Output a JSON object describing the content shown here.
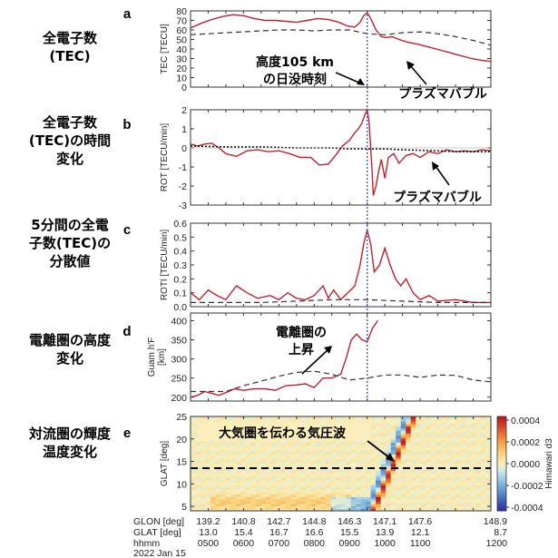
{
  "left_labels": [
    {
      "lines": [
        "全電子数",
        "(TEC)"
      ]
    },
    {
      "lines": [
        "全電子数",
        "(TEC)の時間",
        "変化"
      ]
    },
    {
      "lines": [
        "5分間の全電",
        "子数(TEC)の",
        "分散値"
      ]
    },
    {
      "lines": [
        "電離圏の高度",
        "変化"
      ]
    },
    {
      "lines": [
        "対流圏の輝度",
        "温度変化"
      ]
    }
  ],
  "colors": {
    "red": "#c0202a",
    "dashed": "#333333",
    "sunset_line": "#2b4fc9",
    "axis": "#333333"
  },
  "sunset_index": 10.0,
  "chart_data": [
    {
      "type": "line",
      "panel": "a",
      "ylabel": "TEC [TECU]",
      "ylim": [
        0,
        80
      ],
      "yticks": [
        0,
        10,
        20,
        30,
        40,
        50,
        60,
        70,
        80
      ],
      "series": [
        {
          "style": "solid",
          "x": [
            0.0,
            0.6,
            1.2,
            1.8,
            2.4,
            3.0,
            3.6,
            4.2,
            4.8,
            5.4,
            6.0,
            6.6,
            7.2,
            7.8,
            8.4,
            8.9,
            9.3,
            9.6,
            9.8,
            10.0,
            10.2,
            10.5,
            10.8,
            11.1,
            11.4,
            11.8,
            12.3,
            12.9,
            13.5,
            14.1,
            14.7,
            15.3,
            15.9,
            16.5,
            17.0
          ],
          "y": [
            62,
            67,
            71,
            74,
            76,
            75,
            72,
            70,
            70,
            69,
            68,
            70,
            72,
            71,
            68,
            64,
            63,
            68,
            75,
            78,
            72,
            60,
            53,
            52,
            53,
            50,
            47,
            45,
            42,
            39,
            36,
            33,
            30,
            28,
            27
          ]
        },
        {
          "style": "dashed",
          "x": [
            0,
            1,
            2,
            3,
            4,
            5,
            6,
            7,
            8,
            9,
            10,
            11,
            12,
            13,
            14,
            15,
            16,
            17
          ],
          "y": [
            55,
            56,
            57,
            58,
            59,
            60,
            60,
            59,
            60,
            60,
            56,
            55,
            57,
            58,
            56,
            53,
            49,
            44
          ]
        }
      ],
      "annotations": [
        {
          "text_lines": [
            "高度105 km",
            "の日没時刻"
          ]
        },
        {
          "text_lines": [
            "プラズマバブル"
          ]
        }
      ]
    },
    {
      "type": "line",
      "panel": "b",
      "ylabel": "ROT [TECU/min]",
      "ylim": [
        -3,
        2
      ],
      "yticks": [
        -3,
        -2,
        -1,
        0,
        1,
        2
      ],
      "series": [
        {
          "style": "solid",
          "x": [
            0,
            0.4,
            0.8,
            1.2,
            1.6,
            2.0,
            2.6,
            3.2,
            3.8,
            4.4,
            5.0,
            5.6,
            6.2,
            6.8,
            7.3,
            7.8,
            8.2,
            8.6,
            9.0,
            9.3,
            9.5,
            9.7,
            9.85,
            10.0,
            10.1,
            10.25,
            10.35,
            10.5,
            10.65,
            10.8,
            11.0,
            11.2,
            11.5,
            11.8,
            12.2,
            12.6,
            13.0,
            13.5,
            14.0,
            14.5,
            15.0,
            15.5,
            16.0,
            16.5,
            17.0
          ],
          "y": [
            0.2,
            0.1,
            0.2,
            0.25,
            0.0,
            -0.3,
            -0.45,
            -0.15,
            -0.1,
            -0.2,
            -0.15,
            -0.3,
            -0.5,
            -0.5,
            -0.9,
            -0.85,
            -0.4,
            0.1,
            0.4,
            0.8,
            1.0,
            1.3,
            1.7,
            2.0,
            1.4,
            -0.8,
            -2.5,
            -2.0,
            -1.2,
            -0.6,
            -1.6,
            -0.5,
            -0.3,
            -0.8,
            -0.4,
            -0.3,
            -0.5,
            -0.2,
            -0.3,
            -0.1,
            -0.2,
            -0.15,
            -0.2,
            -0.1,
            -0.15
          ]
        },
        {
          "style": "dotted",
          "x": [
            0,
            2,
            4,
            6,
            8,
            9,
            10,
            11,
            12,
            14,
            15,
            17
          ],
          "y": [
            0.1,
            0.05,
            0.05,
            0.0,
            0.0,
            -0.05,
            -0.05,
            -0.05,
            -0.1,
            -0.15,
            -0.2,
            -0.2
          ]
        }
      ],
      "annotations": [
        {
          "text_lines": [
            "プラズマバブル"
          ]
        }
      ]
    },
    {
      "type": "line",
      "panel": "c",
      "ylabel": "ROTI [TECU/min]",
      "ylim": [
        0,
        0.6
      ],
      "yticks": [
        0.0,
        0.1,
        0.2,
        0.3,
        0.4,
        0.5,
        0.6
      ],
      "series": [
        {
          "style": "solid",
          "x": [
            0.0,
            0.5,
            1.0,
            1.5,
            2.0,
            2.6,
            3.2,
            3.8,
            4.5,
            5.0,
            5.5,
            6.0,
            6.5,
            7.0,
            7.5,
            7.8,
            8.1,
            8.5,
            8.9,
            9.3,
            9.6,
            9.8,
            10.0,
            10.2,
            10.4,
            10.7,
            11.0,
            11.3,
            11.6,
            11.9,
            12.2,
            12.6,
            13.0,
            13.5,
            14.0,
            15.0,
            16.0,
            17.0
          ],
          "y": [
            0.1,
            0.05,
            0.12,
            0.08,
            0.05,
            0.15,
            0.1,
            0.06,
            0.08,
            0.05,
            0.1,
            0.06,
            0.05,
            0.08,
            0.15,
            0.06,
            0.12,
            0.05,
            0.1,
            0.15,
            0.3,
            0.45,
            0.55,
            0.45,
            0.25,
            0.3,
            0.42,
            0.3,
            0.2,
            0.15,
            0.2,
            0.1,
            0.05,
            0.08,
            0.04,
            0.05,
            0.03,
            0.03
          ]
        },
        {
          "style": "dashed",
          "x": [
            0,
            2,
            4,
            6,
            8,
            10,
            12,
            14,
            17
          ],
          "y": [
            0.03,
            0.03,
            0.03,
            0.04,
            0.05,
            0.05,
            0.04,
            0.03,
            0.03
          ]
        }
      ]
    },
    {
      "type": "line",
      "panel": "d",
      "ylabel_lines": [
        "Guam h'F",
        "[km]"
      ],
      "ylim": [
        190,
        420
      ],
      "yticks": [
        200,
        250,
        300,
        350,
        400
      ],
      "series": [
        {
          "style": "solid",
          "x": [
            0.0,
            0.4,
            0.8,
            1.2,
            1.6,
            2.0,
            2.5,
            3.0,
            3.6,
            4.2,
            4.8,
            5.4,
            6.0,
            6.5,
            7.0,
            7.5,
            8.0,
            8.5,
            8.8,
            9.1,
            9.4,
            9.7,
            10.0,
            10.3,
            10.6
          ],
          "y": [
            200,
            205,
            215,
            210,
            205,
            212,
            222,
            218,
            222,
            222,
            218,
            230,
            232,
            235,
            225,
            250,
            250,
            260,
            300,
            350,
            365,
            350,
            345,
            380,
            400
          ]
        },
        {
          "style": "dashed",
          "x": [
            0,
            1,
            2,
            3,
            4,
            5,
            6,
            7,
            8,
            9,
            10,
            11,
            12,
            13,
            14,
            15,
            16,
            17
          ],
          "y": [
            215,
            215,
            215,
            230,
            242,
            255,
            265,
            268,
            260,
            245,
            250,
            258,
            258,
            252,
            258,
            257,
            245,
            240
          ]
        }
      ],
      "annotations": [
        {
          "text_lines": [
            "電離圏の",
            "上昇"
          ]
        }
      ]
    },
    {
      "type": "heatmap",
      "panel": "e",
      "ylabel": "GLAT [deg]",
      "ylim": [
        4,
        25
      ],
      "yticks": [
        5,
        10,
        15,
        20,
        25
      ],
      "colorbar_label": "Himawari d3",
      "colorbar_ticks": [
        "0.0004",
        "0.0002",
        "0.0000",
        "-0.0002",
        "-0.0004"
      ],
      "dashed_glat": 13.5,
      "annotations": [
        {
          "text_lines": [
            "大気圏を伝わる気圧波"
          ]
        }
      ]
    }
  ],
  "x_axis": {
    "rows": [
      {
        "label": "GLON [deg]",
        "values": [
          "139.2",
          "140.8",
          "142.7",
          "144.8",
          "146.3",
          "147.1",
          "147.6",
          "148.9"
        ]
      },
      {
        "label": "GLAT [deg]",
        "values": [
          "13.0",
          "15.4",
          "16.7",
          "16.6",
          "15.5",
          "13.9",
          "12.1",
          "8.7"
        ]
      },
      {
        "label": "hhmm",
        "values": [
          "0500",
          "0600",
          "0700",
          "0800",
          "0900",
          "1000",
          "1100",
          "1200"
        ]
      }
    ],
    "date": "2022 Jan 15"
  }
}
